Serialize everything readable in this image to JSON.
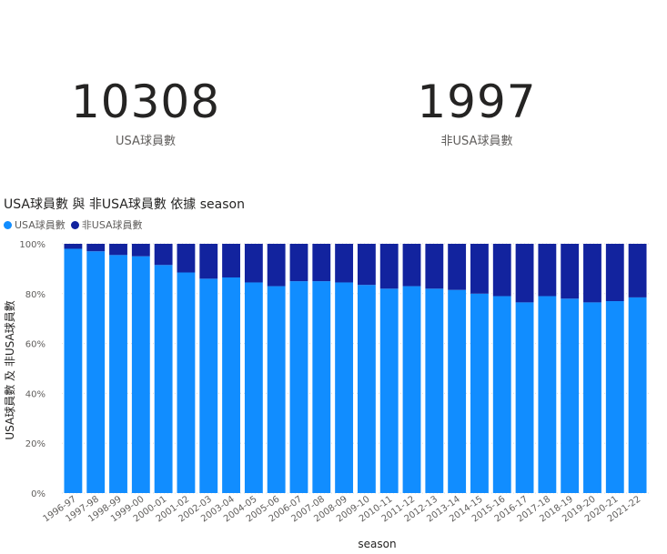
{
  "cards": [
    {
      "value": "10308",
      "label": "USA球員數"
    },
    {
      "value": "1997",
      "label": "非USA球員數"
    }
  ],
  "chart_data": {
    "type": "bar",
    "stacked": "100%",
    "title": "USA球員數 與 非USA球員數 依據 season",
    "xlabel": "season",
    "ylabel": "USA球員數 及 非USA球員數",
    "ylim": [
      0,
      100
    ],
    "yticks": [
      "0%",
      "20%",
      "40%",
      "60%",
      "80%",
      "100%"
    ],
    "legend_position": "top-left",
    "categories": [
      "1996-97",
      "1997-98",
      "1998-99",
      "1999-00",
      "2000-01",
      "2001-02",
      "2002-03",
      "2003-04",
      "2004-05",
      "2005-06",
      "2006-07",
      "2007-08",
      "2008-09",
      "2009-10",
      "2010-11",
      "2011-12",
      "2012-13",
      "2013-14",
      "2014-15",
      "2015-16",
      "2016-17",
      "2017-18",
      "2018-19",
      "2019-20",
      "2020-21",
      "2021-22"
    ],
    "series": [
      {
        "name": "USA球員數",
        "color": "#118DFF",
        "values": [
          98,
          97,
          95.5,
          95,
          91.5,
          88.5,
          86,
          86.5,
          84.5,
          83,
          85,
          85,
          84.5,
          83.5,
          82,
          83,
          82,
          81.5,
          80,
          79,
          76.5,
          79,
          78,
          76.5,
          77,
          78.5
        ]
      },
      {
        "name": "非USA球員數",
        "color": "#12239E",
        "values": [
          2,
          3,
          4.5,
          5,
          8.5,
          11.5,
          14,
          13.5,
          15.5,
          17,
          15,
          15,
          15.5,
          16.5,
          18,
          17,
          18,
          18.5,
          20,
          21,
          23.5,
          21,
          22,
          23.5,
          23,
          21.5
        ]
      }
    ]
  }
}
